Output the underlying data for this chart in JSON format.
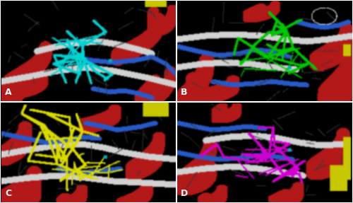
{
  "labels": [
    "A",
    "B",
    "C",
    "D"
  ],
  "border_color": "#ffffff",
  "background_color": "#000000",
  "figsize": [
    5.0,
    2.87
  ],
  "dpi": 100,
  "label_fontsize": 9,
  "label_color": "#ffffff",
  "divider_color": "#ffffff",
  "divider_linewidth": 1.5,
  "panel_size": [
    250,
    143
  ],
  "helix_color": [
    180,
    25,
    25
  ],
  "white_ribbon": [
    210,
    210,
    210
  ],
  "blue_ribbon": [
    40,
    90,
    200
  ],
  "cyan_ligand": [
    0,
    210,
    210
  ],
  "green_ligand": [
    0,
    200,
    0
  ],
  "yellow_ligand": [
    220,
    220,
    0
  ],
  "magenta_ligand": [
    210,
    0,
    210
  ],
  "dark_gray_sticks": [
    90,
    90,
    90
  ],
  "yellow_sheet": [
    200,
    200,
    0
  ]
}
